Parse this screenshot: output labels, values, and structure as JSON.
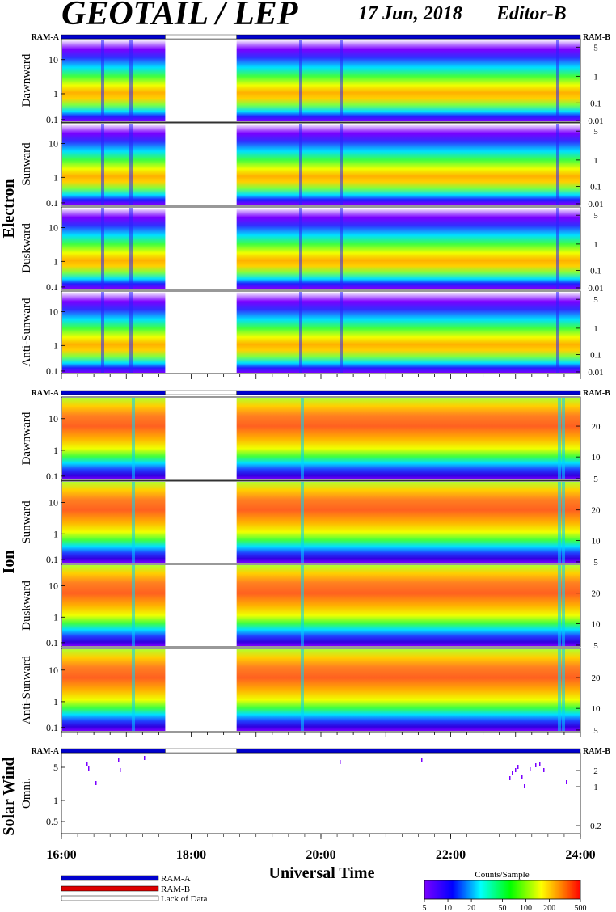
{
  "header": {
    "title": "GEOTAIL / LEP",
    "date": "17 Jun, 2018",
    "editor": "Editor-B"
  },
  "labels": {
    "ram_a": "RAM-A",
    "ram_b": "RAM-B",
    "electron": "Electron",
    "ion": "Ion",
    "solar_wind": "Solar Wind",
    "omni": "Omni.",
    "xaxis_title": "Universal Time",
    "x_ticks": [
      "16:00",
      "18:00",
      "20:00",
      "22:00",
      "24:00"
    ],
    "colorbar_title": "Counts/Sample",
    "colorbar_ticks": [
      "5",
      "10",
      "20",
      "50",
      "100",
      "200",
      "500"
    ]
  },
  "legend": [
    {
      "label": "RAM-A",
      "color": "#0000cc"
    },
    {
      "label": "RAM-B",
      "color": "#dd0000"
    },
    {
      "label": "Lack of Data",
      "color": "#ffffff"
    }
  ],
  "chart_data": {
    "type": "heatmap",
    "x_range": [
      "16:00",
      "24:00"
    ],
    "data_gap": [
      "17:36",
      "18:42"
    ],
    "colorbar": {
      "label": "Counts/Sample",
      "range": [
        5,
        500
      ],
      "scale": "log"
    },
    "panels": [
      {
        "group": "Electron",
        "name": "Dawnward",
        "left_ticks": [
          "10",
          "1",
          "0.1"
        ],
        "right_ticks": [
          "5",
          "1",
          "0.1",
          "0.01"
        ]
      },
      {
        "group": "Electron",
        "name": "Sunward",
        "left_ticks": [
          "10",
          "1",
          "0.1"
        ],
        "right_ticks": [
          "5",
          "1",
          "0.1",
          "0.01"
        ]
      },
      {
        "group": "Electron",
        "name": "Duskward",
        "left_ticks": [
          "10",
          "1",
          "0.1"
        ],
        "right_ticks": [
          "5",
          "1",
          "0.1",
          "0.01"
        ]
      },
      {
        "group": "Electron",
        "name": "Anti-Sunward",
        "left_ticks": [
          "10",
          "1",
          "0.1"
        ],
        "right_ticks": [
          "5",
          "1",
          "0.1",
          "0.01"
        ]
      },
      {
        "group": "Ion",
        "name": "Dawnward",
        "left_ticks": [
          "10",
          "1",
          "0.1"
        ],
        "right_ticks": [
          "20",
          "10",
          "5"
        ]
      },
      {
        "group": "Ion",
        "name": "Sunward",
        "left_ticks": [
          "10",
          "1",
          "0.1"
        ],
        "right_ticks": [
          "20",
          "10",
          "5"
        ]
      },
      {
        "group": "Ion",
        "name": "Duskward",
        "left_ticks": [
          "10",
          "1",
          "0.1"
        ],
        "right_ticks": [
          "20",
          "10",
          "5"
        ]
      },
      {
        "group": "Ion",
        "name": "Anti-Sunward",
        "left_ticks": [
          "10",
          "1",
          "0.1"
        ],
        "right_ticks": [
          "20",
          "10",
          "5"
        ]
      },
      {
        "group": "Solar Wind",
        "name": "Omni.",
        "left_ticks": [
          "5",
          "1",
          "0.5"
        ],
        "right_ticks": [
          "2",
          "1",
          "0.2"
        ]
      }
    ]
  }
}
